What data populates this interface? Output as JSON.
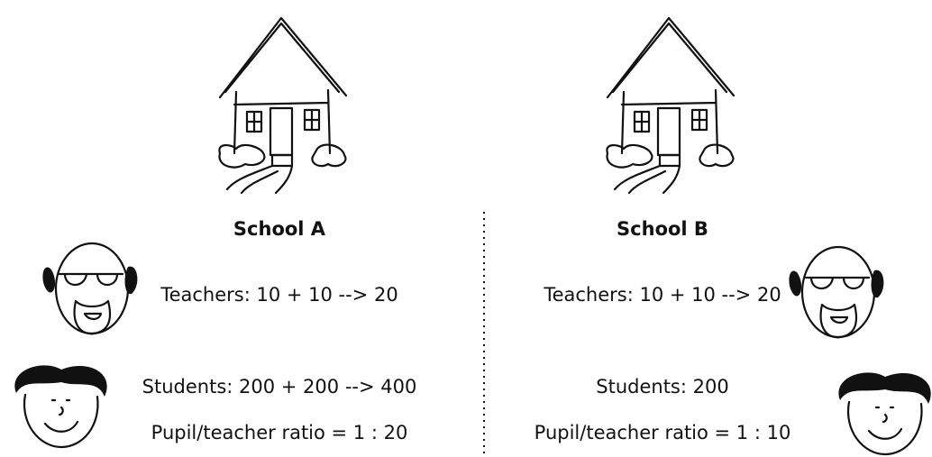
{
  "schools": [
    {
      "name": "School A",
      "teachers": "Teachers: 10 + 10 --> 20",
      "students": "Students: 200 + 200 --> 400",
      "ratio": "Pupil/teacher ratio = 1 : 20"
    },
    {
      "name": "School B",
      "teachers": "Teachers: 10 + 10 --> 20",
      "students": "Students: 200",
      "ratio": "Pupil/teacher ratio = 1 : 10"
    }
  ]
}
